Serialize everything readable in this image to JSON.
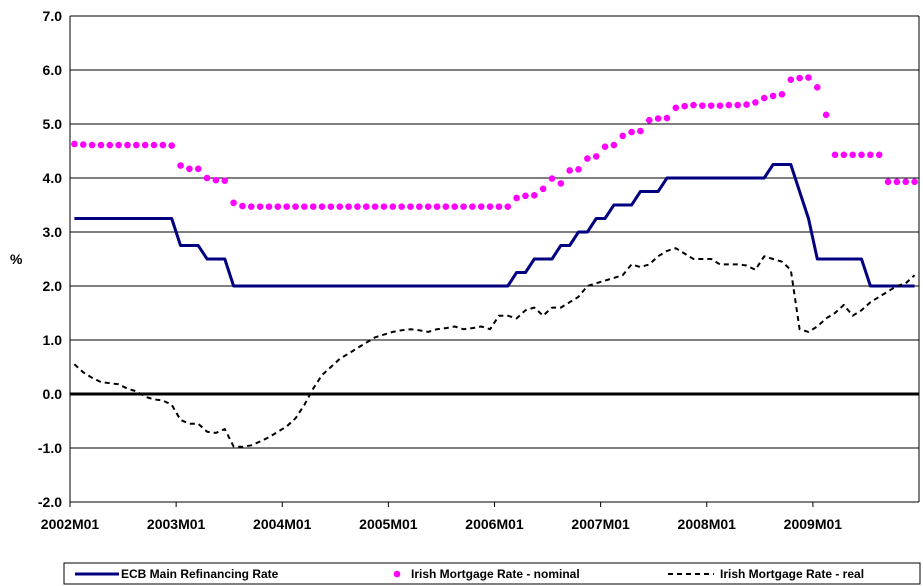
{
  "chart_data": {
    "type": "line",
    "title": "",
    "xlabel": "",
    "ylabel": "%",
    "ylim": [
      -2.0,
      7.0
    ],
    "yticks": [
      "-2.0",
      "-1.0",
      "0.0",
      "1.0",
      "2.0",
      "3.0",
      "4.0",
      "5.0",
      "6.0",
      "7.0"
    ],
    "xticks": [
      {
        "label": "2002M01",
        "index": 0
      },
      {
        "label": "2003M01",
        "index": 12
      },
      {
        "label": "2004M01",
        "index": 24
      },
      {
        "label": "2005M01",
        "index": 36
      },
      {
        "label": "2006M01",
        "index": 48
      },
      {
        "label": "2007M01",
        "index": 60
      },
      {
        "label": "2008M01",
        "index": 72
      },
      {
        "label": "2009M01",
        "index": 84
      }
    ],
    "x_count": 96,
    "grid": true,
    "zero_line": true,
    "legend_position": "bottom",
    "series": [
      {
        "name": "ECB Main Refinancing Rate",
        "style": "solid",
        "color": "#000080",
        "values": [
          3.25,
          3.25,
          3.25,
          3.25,
          3.25,
          3.25,
          3.25,
          3.25,
          3.25,
          3.25,
          3.25,
          3.25,
          2.75,
          2.75,
          2.75,
          2.5,
          2.5,
          2.5,
          2.0,
          2.0,
          2.0,
          2.0,
          2.0,
          2.0,
          2.0,
          2.0,
          2.0,
          2.0,
          2.0,
          2.0,
          2.0,
          2.0,
          2.0,
          2.0,
          2.0,
          2.0,
          2.0,
          2.0,
          2.0,
          2.0,
          2.0,
          2.0,
          2.0,
          2.0,
          2.0,
          2.0,
          2.0,
          2.0,
          2.0,
          2.0,
          2.25,
          2.25,
          2.5,
          2.5,
          2.5,
          2.75,
          2.75,
          3.0,
          3.0,
          3.25,
          3.25,
          3.5,
          3.5,
          3.5,
          3.75,
          3.75,
          3.75,
          4.0,
          4.0,
          4.0,
          4.0,
          4.0,
          4.0,
          4.0,
          4.0,
          4.0,
          4.0,
          4.0,
          4.0,
          4.25,
          4.25,
          4.25,
          3.75,
          3.25,
          2.5,
          2.5,
          2.5,
          2.5,
          2.5,
          2.5,
          2.0,
          2.0,
          2.0,
          2.0,
          2.0,
          2.0
        ]
      },
      {
        "name": "Irish Mortgage Rate - nominal",
        "style": "dots",
        "color": "#ff00ff",
        "values": [
          4.63,
          4.62,
          4.61,
          4.61,
          4.61,
          4.61,
          4.61,
          4.61,
          4.61,
          4.61,
          4.61,
          4.6,
          4.23,
          4.17,
          4.17,
          4.0,
          3.96,
          3.95,
          3.54,
          3.48,
          3.47,
          3.47,
          3.47,
          3.47,
          3.47,
          3.47,
          3.47,
          3.47,
          3.47,
          3.47,
          3.47,
          3.47,
          3.47,
          3.47,
          3.47,
          3.47,
          3.47,
          3.47,
          3.47,
          3.47,
          3.47,
          3.47,
          3.47,
          3.47,
          3.47,
          3.47,
          3.47,
          3.47,
          3.47,
          3.47,
          3.63,
          3.67,
          3.68,
          3.8,
          3.99,
          3.9,
          4.14,
          4.16,
          4.36,
          4.4,
          4.58,
          4.61,
          4.78,
          4.85,
          4.87,
          5.07,
          5.1,
          5.11,
          5.3,
          5.33,
          5.35,
          5.34,
          5.34,
          5.34,
          5.35,
          5.35,
          5.36,
          5.4,
          5.48,
          5.52,
          5.55,
          5.82,
          5.85,
          5.86,
          5.68,
          5.17,
          4.43,
          4.43,
          4.43,
          4.43,
          4.43,
          4.43,
          3.93,
          3.93,
          3.93,
          3.93
        ]
      },
      {
        "name": "Irish Mortgage Rate - real",
        "style": "dashed",
        "color": "#000000",
        "values": [
          0.55,
          0.4,
          0.3,
          0.22,
          0.2,
          0.18,
          0.1,
          0.05,
          -0.05,
          -0.1,
          -0.12,
          -0.2,
          -0.48,
          -0.55,
          -0.55,
          -0.7,
          -0.72,
          -0.65,
          -0.97,
          -0.98,
          -0.95,
          -0.88,
          -0.8,
          -0.7,
          -0.6,
          -0.45,
          -0.2,
          0.1,
          0.35,
          0.5,
          0.65,
          0.75,
          0.85,
          0.95,
          1.05,
          1.1,
          1.15,
          1.18,
          1.2,
          1.18,
          1.15,
          1.2,
          1.22,
          1.25,
          1.2,
          1.22,
          1.25,
          1.2,
          1.45,
          1.45,
          1.4,
          1.55,
          1.6,
          1.45,
          1.6,
          1.6,
          1.7,
          1.8,
          2.0,
          2.05,
          2.1,
          2.15,
          2.2,
          2.4,
          2.35,
          2.4,
          2.55,
          2.65,
          2.7,
          2.6,
          2.5,
          2.5,
          2.5,
          2.4,
          2.4,
          2.4,
          2.38,
          2.3,
          2.55,
          2.5,
          2.45,
          2.3,
          1.2,
          1.15,
          1.25,
          1.4,
          1.5,
          1.65,
          1.45,
          1.55,
          1.7,
          1.8,
          1.9,
          2.0,
          2.05,
          2.2
        ]
      }
    ]
  }
}
